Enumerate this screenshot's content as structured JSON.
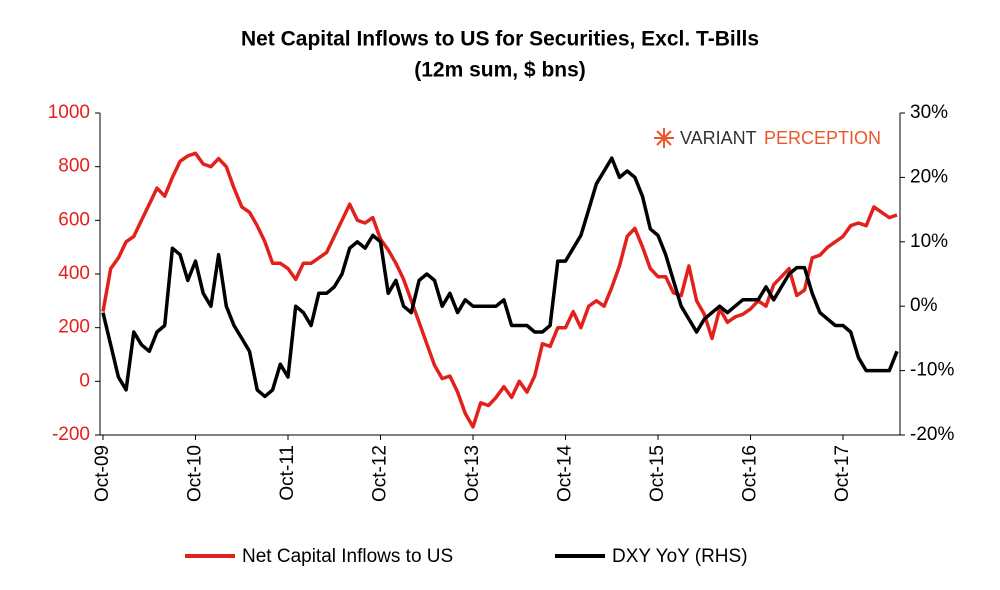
{
  "chart_data": {
    "type": "line",
    "title": "Net Capital Inflows to US for Securities, Excl. T-Bills",
    "subtitle": "(12m sum, $ bns)",
    "logo": [
      "VARIANT",
      "PERCEPTION"
    ],
    "categories": [
      "Oct-09",
      null,
      null,
      null,
      null,
      null,
      null,
      null,
      null,
      null,
      null,
      null,
      "Oct-10",
      null,
      null,
      null,
      null,
      null,
      null,
      null,
      null,
      null,
      null,
      null,
      "Oct-11",
      null,
      null,
      null,
      null,
      null,
      null,
      null,
      null,
      null,
      null,
      null,
      "Oct-12",
      null,
      null,
      null,
      null,
      null,
      null,
      null,
      null,
      null,
      null,
      null,
      "Oct-13",
      null,
      null,
      null,
      null,
      null,
      null,
      null,
      null,
      null,
      null,
      null,
      "Oct-14",
      null,
      null,
      null,
      null,
      null,
      null,
      null,
      null,
      null,
      null,
      null,
      "Oct-15",
      null,
      null,
      null,
      null,
      null,
      null,
      null,
      null,
      null,
      null,
      null,
      "Oct-16",
      null,
      null,
      null,
      null,
      null,
      null,
      null,
      null,
      null,
      null,
      null,
      "Oct-17",
      null,
      null,
      null,
      null,
      null,
      null,
      null
    ],
    "series": [
      {
        "name": "Net Capital Inflows to US",
        "color": "#e3211c",
        "axis": "y",
        "values": [
          260,
          420,
          460,
          520,
          540,
          600,
          660,
          720,
          690,
          760,
          820,
          840,
          850,
          810,
          800,
          830,
          800,
          720,
          650,
          630,
          580,
          520,
          440,
          440,
          420,
          380,
          440,
          440,
          460,
          480,
          540,
          600,
          660,
          600,
          590,
          610,
          530,
          490,
          440,
          380,
          300,
          220,
          140,
          60,
          10,
          20,
          -40,
          -120,
          -170,
          -80,
          -90,
          -60,
          -20,
          -60,
          0,
          -40,
          20,
          140,
          130,
          200,
          200,
          260,
          200,
          280,
          300,
          280,
          350,
          430,
          540,
          570,
          500,
          420,
          390,
          390,
          330,
          320,
          430,
          300,
          250,
          160,
          270,
          220,
          240,
          250,
          270,
          300,
          280,
          360,
          390,
          420,
          320,
          340,
          460,
          470,
          500,
          520,
          540,
          580,
          590,
          580,
          650,
          630,
          610,
          620
        ]
      },
      {
        "name": "DXY YoY (RHS)",
        "color": "#000000",
        "axis": "y2",
        "values": [
          -1,
          -6,
          -11,
          -13,
          -4,
          -6,
          -7,
          -4,
          -3,
          9,
          8,
          4,
          7,
          2,
          0,
          8,
          0,
          -3,
          -5,
          -7,
          -13,
          -14,
          -13,
          -9,
          -11,
          0,
          -1,
          -3,
          2,
          2,
          3,
          5,
          9,
          10,
          9,
          11,
          10,
          2,
          4,
          0,
          -1,
          4,
          5,
          4,
          0,
          2,
          -1,
          1,
          0,
          0,
          0,
          0,
          1,
          -3,
          -3,
          -3,
          -4,
          -4,
          -3,
          7,
          7,
          9,
          11,
          15,
          19,
          21,
          23,
          20,
          21,
          20,
          17,
          12,
          11,
          8,
          4,
          0,
          -2,
          -4,
          -2,
          -1,
          0,
          -1,
          0,
          1,
          1,
          1,
          3,
          1,
          3,
          5,
          6,
          6,
          2,
          -1,
          -2,
          -3,
          -3,
          -4,
          -8,
          -10,
          -10,
          -10,
          -10,
          -7
        ]
      }
    ],
    "ylim": [
      -200,
      1000
    ],
    "yticks": [
      -200,
      0,
      200,
      400,
      600,
      800,
      1000
    ],
    "y2lim": [
      -20,
      30
    ],
    "y2ticks": [
      {
        "value": -20,
        "label": "-20%"
      },
      {
        "value": -10,
        "label": "-10%"
      },
      {
        "value": 0,
        "label": "0%"
      },
      {
        "value": 10,
        "label": "10%"
      },
      {
        "value": 20,
        "label": "20%"
      },
      {
        "value": 30,
        "label": "30%"
      }
    ],
    "ytick_color": "#e3211c",
    "y2tick_color": "#000000"
  }
}
